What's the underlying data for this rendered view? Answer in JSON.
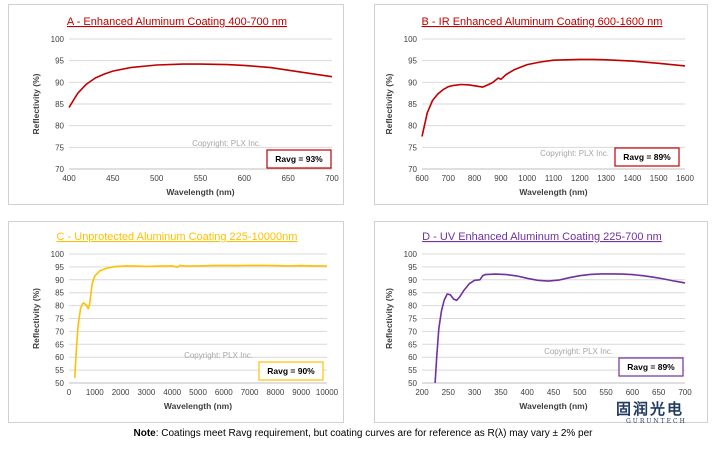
{
  "chart_data": [
    {
      "type": "line",
      "title": "A - Enhanced Aluminum Coating 400-700 nm",
      "title_color": "#c00000",
      "line_color": "#c00000",
      "xlabel": "Wavelength (nm)",
      "ylabel": "Reflectivity (%)",
      "xlim": [
        400,
        700
      ],
      "ylim": [
        70,
        100
      ],
      "xticks": [
        400,
        450,
        500,
        550,
        600,
        650,
        700
      ],
      "yticks": [
        70,
        75,
        80,
        85,
        90,
        95,
        100
      ],
      "grid": true,
      "watermark": "Copyright: PLX Inc.",
      "badge": "Ravg = 93%",
      "badge_color": "#c00000",
      "series": [
        {
          "x": [
            400,
            410,
            420,
            430,
            440,
            450,
            470,
            500,
            530,
            550,
            580,
            600,
            630,
            650,
            670,
            700
          ],
          "y": [
            84.2,
            87.5,
            89.6,
            91.0,
            91.9,
            92.6,
            93.4,
            94.0,
            94.2,
            94.2,
            94.1,
            93.9,
            93.4,
            92.8,
            92.2,
            91.3
          ]
        }
      ]
    },
    {
      "type": "line",
      "title": "B - IR Enhanced Aluminum Coating 600-1600 nm",
      "title_color": "#c00000",
      "line_color": "#c00000",
      "xlabel": "Wavelength (nm)",
      "ylabel": "Reflectivity (%)",
      "xlim": [
        600,
        1600
      ],
      "ylim": [
        70,
        100
      ],
      "xticks": [
        600,
        700,
        800,
        900,
        1000,
        1100,
        1200,
        1300,
        1400,
        1500,
        1600
      ],
      "yticks": [
        70,
        75,
        80,
        85,
        90,
        95,
        100
      ],
      "grid": true,
      "watermark": "Copyright: PLX Inc.",
      "badge": "Ravg = 89%",
      "badge_color": "#c00000",
      "series": [
        {
          "x": [
            600,
            620,
            640,
            660,
            680,
            700,
            720,
            750,
            780,
            800,
            830,
            850,
            870,
            890,
            900,
            920,
            950,
            1000,
            1050,
            1100,
            1150,
            1200,
            1250,
            1300,
            1400,
            1500,
            1600
          ],
          "y": [
            77.5,
            83.0,
            85.8,
            87.3,
            88.3,
            89.0,
            89.3,
            89.5,
            89.4,
            89.2,
            88.9,
            89.4,
            90.0,
            91.0,
            90.7,
            91.8,
            92.9,
            94.1,
            94.7,
            95.1,
            95.2,
            95.3,
            95.3,
            95.2,
            94.9,
            94.4,
            93.8
          ]
        }
      ]
    },
    {
      "type": "line",
      "title": "C - Unprotected Aluminum Coating 225-10000nm",
      "title_color": "#ffc000",
      "line_color": "#ffc000",
      "xlabel": "Wavelength (nm)",
      "ylabel": "Reflectivity (%)",
      "xlim": [
        0,
        10000
      ],
      "ylim": [
        50,
        100
      ],
      "xticks": [
        0,
        1000,
        2000,
        3000,
        4000,
        5000,
        6000,
        7000,
        8000,
        9000,
        10000
      ],
      "yticks": [
        50,
        55,
        60,
        65,
        70,
        75,
        80,
        85,
        90,
        95,
        100
      ],
      "grid": true,
      "watermark": "Copyright: PLX Inc.",
      "badge": "Ravg = 90%",
      "badge_color": "#ffc000",
      "series": [
        {
          "x": [
            225,
            280,
            350,
            450,
            550,
            650,
            750,
            800,
            850,
            900,
            1000,
            1200,
            1500,
            1800,
            2200,
            2600,
            3000,
            3500,
            4000,
            4200,
            4300,
            4500,
            5000,
            5500,
            6000,
            6500,
            7000,
            7500,
            8000,
            8500,
            9000,
            9500,
            10000
          ],
          "y": [
            52,
            62,
            72,
            79,
            81,
            80.5,
            78.8,
            80.5,
            84.5,
            88.5,
            91.5,
            93.5,
            94.6,
            95.1,
            95.4,
            95.3,
            95.2,
            95.3,
            95.4,
            94.9,
            95.6,
            95.3,
            95.4,
            95.5,
            95.6,
            95.5,
            95.6,
            95.6,
            95.5,
            95.4,
            95.5,
            95.4,
            95.3
          ]
        }
      ]
    },
    {
      "type": "line",
      "title": "D - UV Enhanced Aluminum Coating 225-700 nm",
      "title_color": "#7030a0",
      "line_color": "#7030a0",
      "xlabel": "Wavelength (nm)",
      "ylabel": "Reflectivity (%)",
      "xlim": [
        200,
        700
      ],
      "ylim": [
        50,
        100
      ],
      "xticks": [
        200,
        250,
        300,
        350,
        400,
        450,
        500,
        550,
        600,
        650,
        700
      ],
      "yticks": [
        50,
        55,
        60,
        65,
        70,
        75,
        80,
        85,
        90,
        95,
        100
      ],
      "grid": true,
      "watermark": "Copyright: PLX Inc.",
      "badge": "Ravg = 89%",
      "badge_color": "#7030a0",
      "series": [
        {
          "x": [
            225,
            228,
            232,
            237,
            242,
            248,
            254,
            260,
            266,
            272,
            280,
            290,
            300,
            310,
            315,
            320,
            340,
            360,
            380,
            400,
            420,
            440,
            460,
            480,
            500,
            520,
            540,
            560,
            580,
            600,
            620,
            640,
            660,
            680,
            700
          ],
          "y": [
            50,
            60,
            71,
            78,
            82,
            84.5,
            84.2,
            82.5,
            82.0,
            83.5,
            86.0,
            88.5,
            89.8,
            90.0,
            91.5,
            92.0,
            92.2,
            92.0,
            91.5,
            90.6,
            89.8,
            89.5,
            89.9,
            90.8,
            91.6,
            92.1,
            92.3,
            92.3,
            92.2,
            92.0,
            91.6,
            91.0,
            90.3,
            89.5,
            88.8
          ]
        }
      ]
    }
  ],
  "note": {
    "label": "Note",
    "text": ": Coatings meet Ravg requirement, but coating curves are for reference as R(λ) may vary ± 2% per"
  },
  "logo": {
    "chinese": "固润光电",
    "english": "GURUNTECH"
  }
}
